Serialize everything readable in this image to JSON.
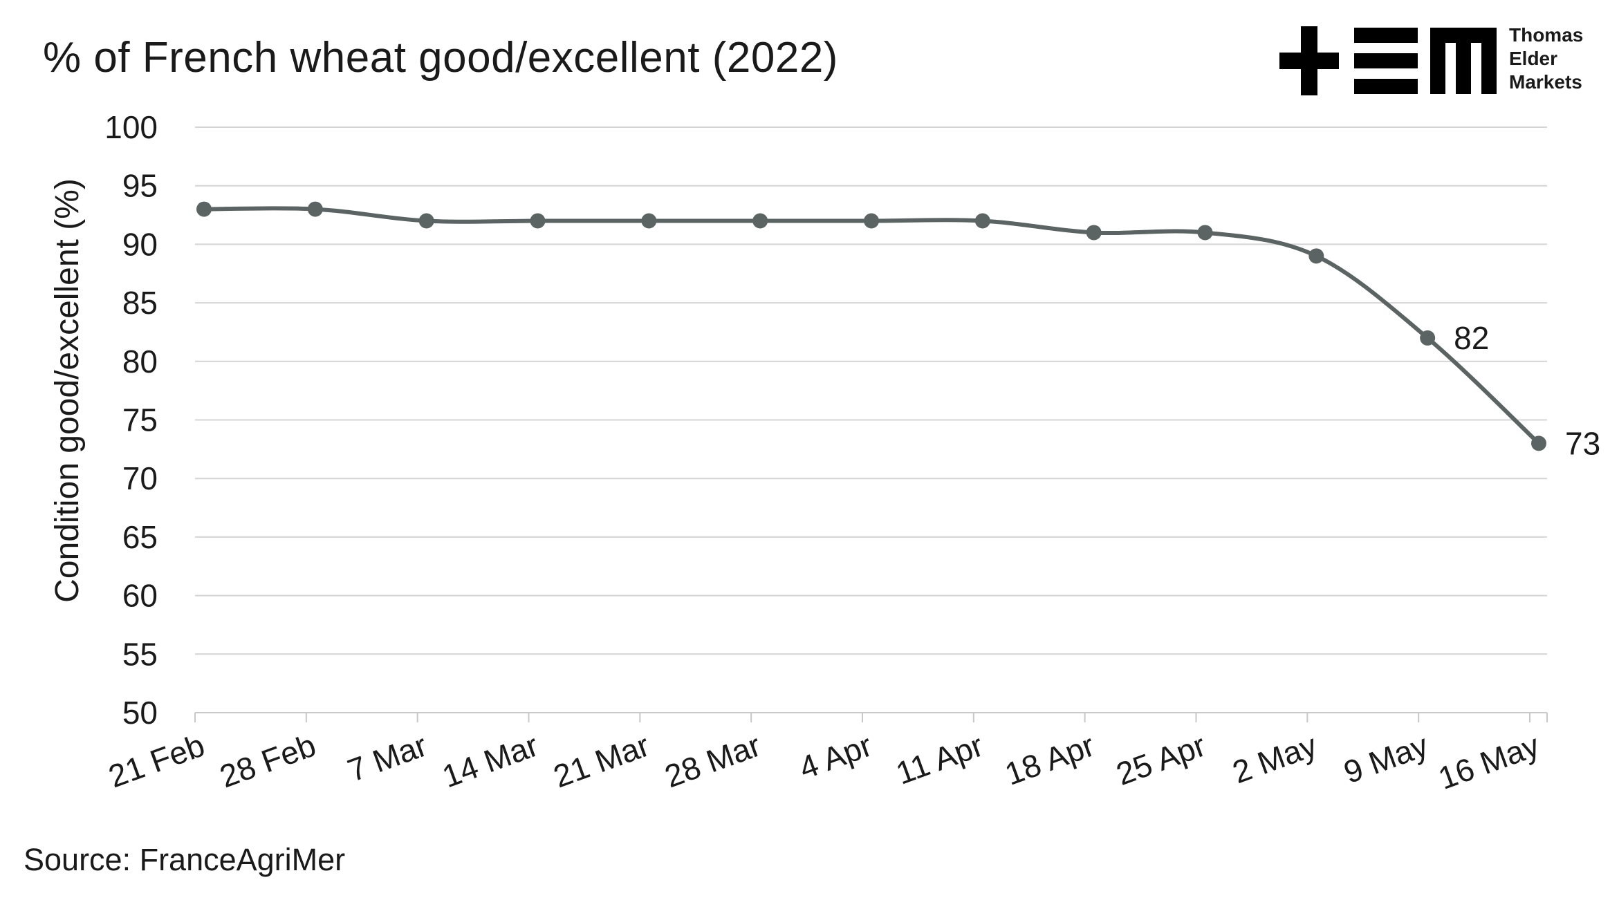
{
  "chart_data": {
    "type": "line",
    "title": "% of French wheat good/excellent (2022)",
    "xlabel": "",
    "ylabel": "Condition good/excellent (%)",
    "categories": [
      "21 Feb",
      "28 Feb",
      "7 Mar",
      "14 Mar",
      "21 Mar",
      "28 Mar",
      "4 Apr",
      "11 Apr",
      "18 Apr",
      "25 Apr",
      "2 May",
      "9 May",
      "16 May"
    ],
    "series": [
      {
        "values": [
          93,
          93,
          92,
          92,
          92,
          92,
          92,
          92,
          91,
          91,
          89,
          82,
          73
        ],
        "color": "#5b6462"
      }
    ],
    "data_labels": [
      {
        "index": 11,
        "text": "82"
      },
      {
        "index": 12,
        "text": "73"
      }
    ],
    "ylim": [
      50,
      100
    ],
    "yticks": [
      50,
      55,
      60,
      65,
      70,
      75,
      80,
      85,
      90,
      95,
      100
    ],
    "grid": true,
    "legend": "none",
    "smooth": true
  },
  "brand": {
    "logo_text": "TEM",
    "name_lines": [
      "Thomas",
      "Elder",
      "Markets"
    ]
  },
  "source": "Source: FranceAgriMer",
  "colors": {
    "line": "#5b6462",
    "grid": "#d4d4d4",
    "axis": "#c8c8c8",
    "text": "#1a1a1a",
    "logo": "#000000"
  }
}
